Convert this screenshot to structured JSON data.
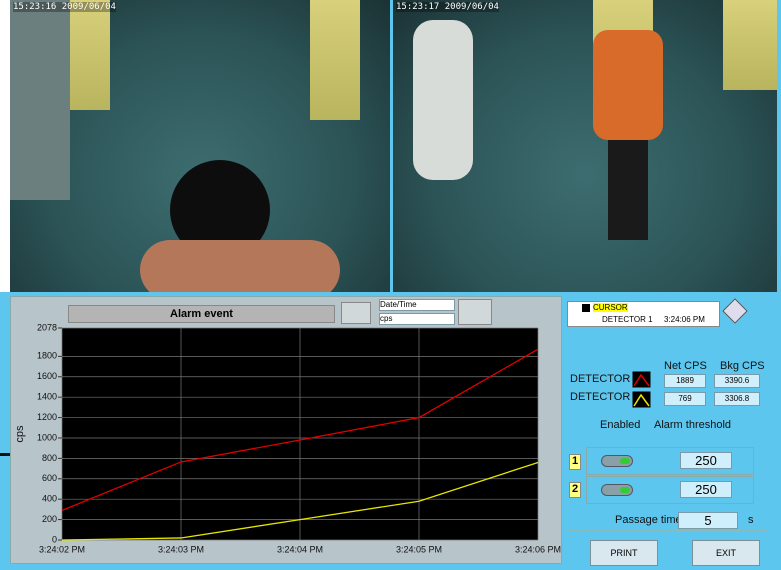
{
  "video": [
    {
      "timestamp": "15:23:16 2009/06/04"
    },
    {
      "timestamp": "15:23:17 2009/06/04"
    }
  ],
  "chart_data": {
    "type": "line",
    "title": "Alarm event",
    "y_label": "cps",
    "x_name": "Date/Time",
    "y_name": "cps",
    "categories": [
      "3:24:02 PM",
      "3:24:03 PM",
      "3:24:04 PM",
      "3:24:05 PM",
      "3:24:06 PM"
    ],
    "series": [
      {
        "name": "DETECTOR 1",
        "color": "#e00000",
        "values": [
          290,
          765,
          980,
          1200,
          1870
        ]
      },
      {
        "name": "DETECTOR 2",
        "color": "#e6e600",
        "values": [
          0,
          20,
          200,
          380,
          760
        ]
      }
    ],
    "ylim": [
      0,
      2078
    ],
    "yticks": [
      0,
      200,
      400,
      600,
      800,
      1000,
      1200,
      1400,
      1600,
      1800,
      2078
    ],
    "grid": true
  },
  "cursor": {
    "label": "CURSOR",
    "detector": "DETECTOR 1",
    "time": "3:24:06 PM"
  },
  "readings": {
    "headers": [
      "Net CPS",
      "Bkg CPS"
    ],
    "rows": [
      {
        "net": 1889,
        "bkg": 3390.6
      },
      {
        "net": 769,
        "bkg": 3306.8
      }
    ]
  },
  "alarm": {
    "enabled_label": "Enabled",
    "threshold_label": "Alarm threshold",
    "rows": [
      {
        "id": 1,
        "threshold": 250
      },
      {
        "id": 2,
        "threshold": 250
      }
    ],
    "passage_label": "Passage time",
    "passage_time": 5,
    "passage_unit": "s"
  },
  "buttons": [
    "PRINT",
    "EXIT"
  ]
}
